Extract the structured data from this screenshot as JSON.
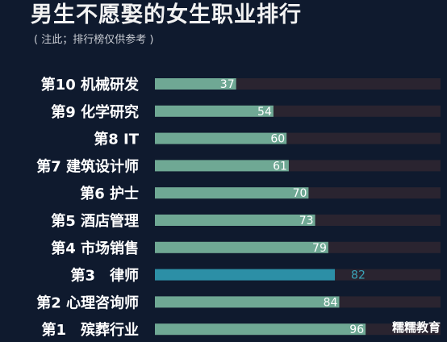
{
  "header": {
    "title": "男生不愿娶的女生职业排行",
    "subtitle": "( 注此；排行榜仅供参考 )"
  },
  "watermark": "糯糯教育",
  "colors": {
    "background": "#0f1a2e",
    "bar": "#6fa894",
    "bar_highlight": "#2c8fa6",
    "track": "#2a2430",
    "label": "#ffffff",
    "value_highlight": "#3aa3b8"
  },
  "chart_data": {
    "type": "bar",
    "orientation": "horizontal",
    "categories": [
      "第10 机械研发",
      "第9 化学研究",
      "第8 IT",
      "第7 建筑设计师",
      "第6 护士",
      "第5 酒店管理",
      "第4 市场销售",
      "第3　律师",
      "第2 心理咨询师",
      "第1　殡葬行业"
    ],
    "values": [
      37,
      54,
      60,
      61,
      70,
      73,
      79,
      82,
      84,
      96
    ],
    "highlight_index": 7,
    "xlim": [
      0,
      125
    ],
    "grid": false,
    "legend": "none"
  }
}
